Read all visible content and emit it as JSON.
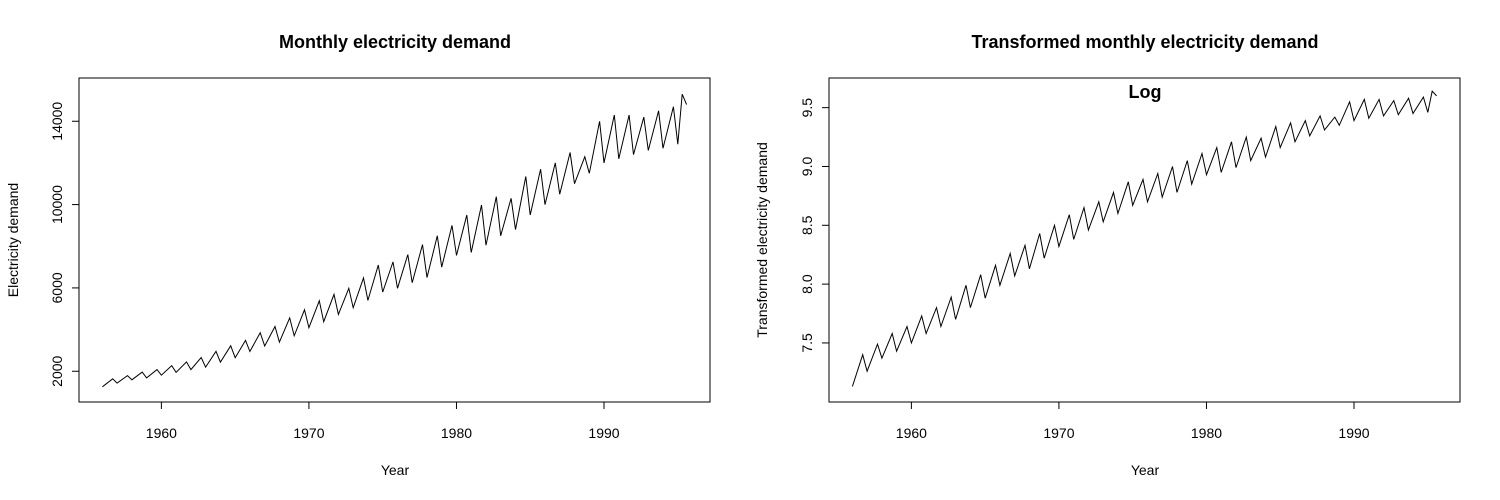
{
  "chart_data": [
    {
      "type": "line",
      "title": "Monthly electricity demand",
      "xlabel": "Year",
      "ylabel": "Electricity demand",
      "xlim": [
        1956,
        1995.6
      ],
      "ylim": [
        1100,
        15500
      ],
      "xticks": [
        1960,
        1970,
        1980,
        1990
      ],
      "yticks": [
        2000,
        6000,
        10000,
        14000
      ],
      "grid": false,
      "series": [
        {
          "values": [
            [
              1956.0,
              1254
            ],
            [
              1956.7,
              1640
            ],
            [
              1957.0,
              1430
            ],
            [
              1957.7,
              1790
            ],
            [
              1958.0,
              1590
            ],
            [
              1958.7,
              1960
            ],
            [
              1959.0,
              1680
            ],
            [
              1959.7,
              2080
            ],
            [
              1960.0,
              1810
            ],
            [
              1960.7,
              2270
            ],
            [
              1961.0,
              1950
            ],
            [
              1961.7,
              2450
            ],
            [
              1962.0,
              2080
            ],
            [
              1962.7,
              2660
            ],
            [
              1963.0,
              2200
            ],
            [
              1963.7,
              2960
            ],
            [
              1964.0,
              2440
            ],
            [
              1964.7,
              3220
            ],
            [
              1965.0,
              2650
            ],
            [
              1965.7,
              3480
            ],
            [
              1966.0,
              2950
            ],
            [
              1966.7,
              3850
            ],
            [
              1967.0,
              3210
            ],
            [
              1967.7,
              4150
            ],
            [
              1968.0,
              3400
            ],
            [
              1968.7,
              4560
            ],
            [
              1969.0,
              3700
            ],
            [
              1969.7,
              4950
            ],
            [
              1970.0,
              4090
            ],
            [
              1970.7,
              5380
            ],
            [
              1971.0,
              4380
            ],
            [
              1971.7,
              5690
            ],
            [
              1972.0,
              4730
            ],
            [
              1972.7,
              5980
            ],
            [
              1973.0,
              5050
            ],
            [
              1973.7,
              6480
            ],
            [
              1974.0,
              5400
            ],
            [
              1974.7,
              7100
            ],
            [
              1975.0,
              5800
            ],
            [
              1975.7,
              7250
            ],
            [
              1976.0,
              5980
            ],
            [
              1976.7,
              7600
            ],
            [
              1977.0,
              6250
            ],
            [
              1977.7,
              8080
            ],
            [
              1978.0,
              6500
            ],
            [
              1978.7,
              8500
            ],
            [
              1979.0,
              7000
            ],
            [
              1979.7,
              9000
            ],
            [
              1980.0,
              7560
            ],
            [
              1980.7,
              9500
            ],
            [
              1981.0,
              7700
            ],
            [
              1981.7,
              9980
            ],
            [
              1982.0,
              8050
            ],
            [
              1982.7,
              10380
            ],
            [
              1983.0,
              8500
            ],
            [
              1983.7,
              10300
            ],
            [
              1984.0,
              8800
            ],
            [
              1984.7,
              11350
            ],
            [
              1985.0,
              9500
            ],
            [
              1985.7,
              11700
            ],
            [
              1986.0,
              10000
            ],
            [
              1986.7,
              12000
            ],
            [
              1987.0,
              10500
            ],
            [
              1987.7,
              12500
            ],
            [
              1988.0,
              11000
            ],
            [
              1988.7,
              12300
            ],
            [
              1989.0,
              11500
            ],
            [
              1989.7,
              14000
            ],
            [
              1990.0,
              12000
            ],
            [
              1990.7,
              14300
            ],
            [
              1991.0,
              12200
            ],
            [
              1991.7,
              14300
            ],
            [
              1992.0,
              12400
            ],
            [
              1992.7,
              14200
            ],
            [
              1993.0,
              12600
            ],
            [
              1993.7,
              14500
            ],
            [
              1994.0,
              12700
            ],
            [
              1994.7,
              14700
            ],
            [
              1995.0,
              12900
            ],
            [
              1995.3,
              15300
            ],
            [
              1995.6,
              14800
            ]
          ]
        }
      ]
    },
    {
      "type": "line",
      "title": "Transformed monthly electricity demand",
      "xlabel": "Year",
      "ylabel": "Transformed electricity demand",
      "annotation": "Log",
      "xlim": [
        1956,
        1995.6
      ],
      "ylim": [
        7.1,
        9.65
      ],
      "xticks": [
        1960,
        1970,
        1980,
        1990
      ],
      "yticks": [
        7.5,
        8.0,
        8.5,
        9.0,
        9.5
      ],
      "grid": false,
      "series": [
        {
          "values": [
            [
              1956.0,
              7.13
            ],
            [
              1956.7,
              7.4
            ],
            [
              1957.0,
              7.26
            ],
            [
              1957.7,
              7.49
            ],
            [
              1958.0,
              7.37
            ],
            [
              1958.7,
              7.58
            ],
            [
              1959.0,
              7.43
            ],
            [
              1959.7,
              7.64
            ],
            [
              1960.0,
              7.5
            ],
            [
              1960.7,
              7.73
            ],
            [
              1961.0,
              7.58
            ],
            [
              1961.7,
              7.8
            ],
            [
              1962.0,
              7.64
            ],
            [
              1962.7,
              7.89
            ],
            [
              1963.0,
              7.7
            ],
            [
              1963.7,
              7.99
            ],
            [
              1964.0,
              7.8
            ],
            [
              1964.7,
              8.08
            ],
            [
              1965.0,
              7.88
            ],
            [
              1965.7,
              8.16
            ],
            [
              1966.0,
              7.99
            ],
            [
              1966.7,
              8.26
            ],
            [
              1967.0,
              8.07
            ],
            [
              1967.7,
              8.33
            ],
            [
              1968.0,
              8.13
            ],
            [
              1968.7,
              8.43
            ],
            [
              1969.0,
              8.22
            ],
            [
              1969.7,
              8.5
            ],
            [
              1970.0,
              8.32
            ],
            [
              1970.7,
              8.59
            ],
            [
              1971.0,
              8.38
            ],
            [
              1971.7,
              8.65
            ],
            [
              1972.0,
              8.46
            ],
            [
              1972.7,
              8.7
            ],
            [
              1973.0,
              8.53
            ],
            [
              1973.7,
              8.78
            ],
            [
              1974.0,
              8.6
            ],
            [
              1974.7,
              8.87
            ],
            [
              1975.0,
              8.67
            ],
            [
              1975.7,
              8.89
            ],
            [
              1976.0,
              8.7
            ],
            [
              1976.7,
              8.94
            ],
            [
              1977.0,
              8.74
            ],
            [
              1977.7,
              9.0
            ],
            [
              1978.0,
              8.78
            ],
            [
              1978.7,
              9.05
            ],
            [
              1979.0,
              8.85
            ],
            [
              1979.7,
              9.11
            ],
            [
              1980.0,
              8.93
            ],
            [
              1980.7,
              9.16
            ],
            [
              1981.0,
              8.95
            ],
            [
              1981.7,
              9.21
            ],
            [
              1982.0,
              8.99
            ],
            [
              1982.7,
              9.25
            ],
            [
              1983.0,
              9.05
            ],
            [
              1983.7,
              9.24
            ],
            [
              1984.0,
              9.08
            ],
            [
              1984.7,
              9.34
            ],
            [
              1985.0,
              9.16
            ],
            [
              1985.7,
              9.37
            ],
            [
              1986.0,
              9.21
            ],
            [
              1986.7,
              9.39
            ],
            [
              1987.0,
              9.26
            ],
            [
              1987.7,
              9.43
            ],
            [
              1988.0,
              9.31
            ],
            [
              1988.7,
              9.42
            ],
            [
              1989.0,
              9.35
            ],
            [
              1989.7,
              9.55
            ],
            [
              1990.0,
              9.39
            ],
            [
              1990.7,
              9.57
            ],
            [
              1991.0,
              9.41
            ],
            [
              1991.7,
              9.57
            ],
            [
              1992.0,
              9.43
            ],
            [
              1992.7,
              9.56
            ],
            [
              1993.0,
              9.44
            ],
            [
              1993.7,
              9.58
            ],
            [
              1994.0,
              9.45
            ],
            [
              1994.7,
              9.59
            ],
            [
              1995.0,
              9.46
            ],
            [
              1995.3,
              9.64
            ],
            [
              1995.6,
              9.6
            ]
          ]
        }
      ]
    }
  ]
}
